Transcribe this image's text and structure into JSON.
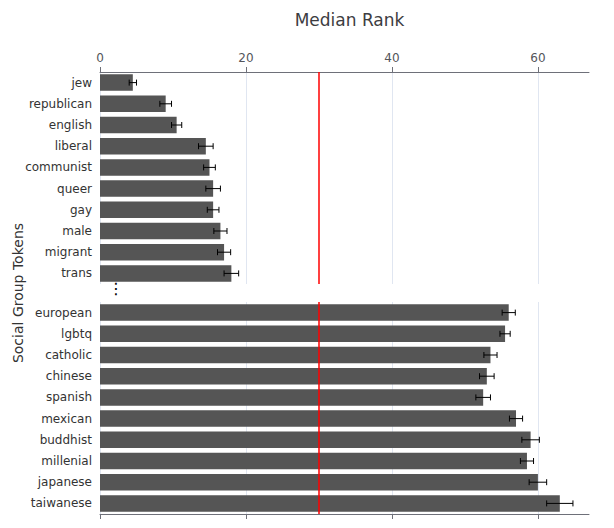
{
  "chart_data": [
    {
      "type": "bar",
      "orientation": "horizontal",
      "title": "Median Rank",
      "ylabel": "Social Group Tokens",
      "categories": [
        "jew",
        "republican",
        "english",
        "liberal",
        "communist",
        "queer",
        "gay",
        "male",
        "migrant",
        "trans"
      ],
      "values": [
        4.5,
        9.0,
        10.5,
        14.5,
        15.0,
        15.5,
        15.5,
        16.5,
        17.0,
        18.0
      ],
      "errors": [
        0.5,
        0.8,
        0.7,
        1.0,
        0.8,
        1.0,
        0.8,
        0.9,
        0.9,
        1.0
      ],
      "color": "#555555",
      "xlim": [
        0,
        67
      ],
      "xticks": [
        0,
        20,
        40,
        60
      ],
      "grid": true,
      "reference_line": {
        "x": 30,
        "color": "red"
      },
      "annotation": "⋮"
    },
    {
      "type": "bar",
      "orientation": "horizontal",
      "categories": [
        "european",
        "lgbtq",
        "catholic",
        "chinese",
        "spanish",
        "mexican",
        "buddhist",
        "millenial",
        "japanese",
        "taiwanese"
      ],
      "values": [
        56.0,
        55.5,
        53.5,
        53.0,
        52.5,
        57.0,
        59.0,
        58.5,
        60.0,
        63.0
      ],
      "errors": [
        0.9,
        0.7,
        0.9,
        1.0,
        1.0,
        0.9,
        1.2,
        0.9,
        1.2,
        1.8
      ],
      "color": "#555555",
      "xlim": [
        0,
        67
      ],
      "xticks": [
        0,
        20,
        40,
        60
      ],
      "grid": true,
      "tick_labels": "y",
      "reference_line": {
        "x": 30,
        "color": "red"
      }
    }
  ]
}
